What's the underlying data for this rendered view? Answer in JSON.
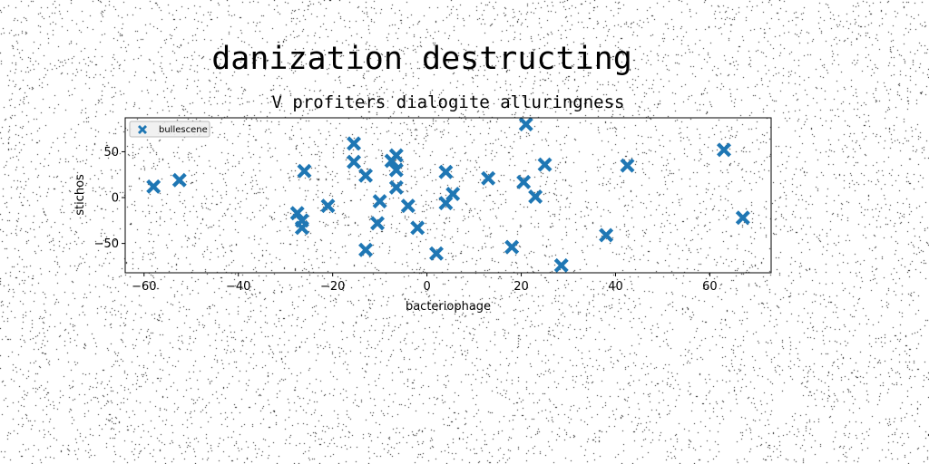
{
  "chart_data": {
    "type": "scatter",
    "suptitle": "danization destructing",
    "title": "V profiters dialogite alluringness",
    "xlabel": "bacteriophage",
    "ylabel": "stichos",
    "xlim": [
      -64,
      73
    ],
    "ylim": [
      -82,
      87
    ],
    "xticks": [
      -60,
      -40,
      -20,
      0,
      20,
      40,
      60
    ],
    "yticks": [
      -50,
      0,
      50
    ],
    "grid": false,
    "legend_position": "top-left",
    "series": [
      {
        "name": "bullescene",
        "color": "#1f77b4",
        "marker": "X",
        "points": [
          [
            -58,
            12
          ],
          [
            -52.5,
            19
          ],
          [
            -27.5,
            -17
          ],
          [
            -26.5,
            -25
          ],
          [
            -26.5,
            -33
          ],
          [
            -26,
            29
          ],
          [
            -21,
            -9
          ],
          [
            -15.5,
            59
          ],
          [
            -15.5,
            39
          ],
          [
            -13,
            24
          ],
          [
            -13,
            -57
          ],
          [
            -10.5,
            -28
          ],
          [
            -10,
            -4
          ],
          [
            -7.5,
            40
          ],
          [
            -6.5,
            46
          ],
          [
            -6.5,
            30
          ],
          [
            -6.5,
            11
          ],
          [
            -4,
            -9
          ],
          [
            -2,
            -33
          ],
          [
            2,
            -61
          ],
          [
            4,
            28
          ],
          [
            4,
            -6
          ],
          [
            5.5,
            4
          ],
          [
            13,
            21
          ],
          [
            18,
            -54
          ],
          [
            20.5,
            17
          ],
          [
            21,
            80
          ],
          [
            23,
            1
          ],
          [
            25,
            36
          ],
          [
            28.5,
            -74
          ],
          [
            38,
            -41
          ],
          [
            42.5,
            35
          ],
          [
            63,
            52
          ],
          [
            67,
            -22
          ]
        ]
      }
    ]
  }
}
